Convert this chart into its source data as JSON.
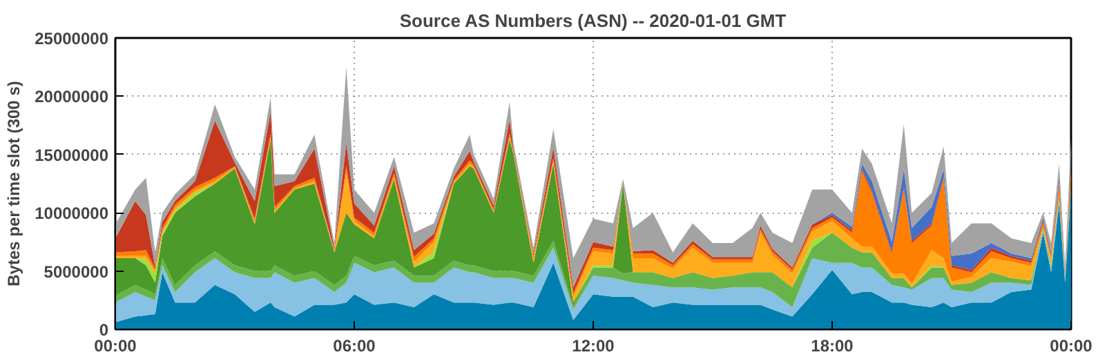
{
  "chart_data": {
    "type": "area",
    "stacked": true,
    "title": "Source AS Numbers (ASN) -- 2020-01-01 GMT",
    "ylabel": "Bytes per time slot (300 s)",
    "x": [
      0,
      0.5,
      0.77,
      1.0,
      1.18,
      1.5,
      2,
      2.5,
      3,
      3.5,
      3.9,
      4,
      4.5,
      5,
      5.5,
      5.8,
      6,
      6.5,
      7,
      7.5,
      8,
      8.5,
      8.9,
      9,
      9.5,
      9.9,
      10,
      10.5,
      11,
      11.5,
      12,
      12.5,
      12.75,
      13,
      13.5,
      14,
      14.5,
      15,
      15.5,
      16,
      16.2,
      16.5,
      17,
      17.5,
      18,
      18.5,
      18.75,
      19,
      19.5,
      19.8,
      20,
      20.5,
      20.8,
      21,
      21.5,
      22,
      22.5,
      23,
      23.3,
      23.5,
      23.7,
      23.85,
      24
    ],
    "xlim": [
      0,
      24
    ],
    "xticks": [
      {
        "value": 0,
        "label": "00:00"
      },
      {
        "value": 6,
        "label": "06:00"
      },
      {
        "value": 12,
        "label": "12:00"
      },
      {
        "value": 18,
        "label": "18:00"
      },
      {
        "value": 24,
        "label": "00:00"
      }
    ],
    "ylim": [
      0,
      25000000
    ],
    "yticks": [
      0,
      5000000,
      10000000,
      15000000,
      20000000,
      25000000
    ],
    "grid": true,
    "series": [
      {
        "color": "#0080b0",
        "values": [
          600000.0,
          1100000.0,
          1200000.0,
          1300000.0,
          4900000.0,
          2300000.0,
          2300000.0,
          3800000.0,
          3000000.0,
          1500000.0,
          2300000.0,
          1900000.0,
          1100000.0,
          2100000.0,
          2100000.0,
          2300000.0,
          3000000.0,
          2100000.0,
          2300000.0,
          1900000.0,
          3000000.0,
          2300000.0,
          2300000.0,
          2300000.0,
          2100000.0,
          2300000.0,
          2300000.0,
          1900000.0,
          5700000.0,
          800000.0,
          3000000.0,
          2800000.0,
          2800000.0,
          2800000.0,
          1900000.0,
          2300000.0,
          2100000.0,
          2100000.0,
          2100000.0,
          2100000.0,
          2100000.0,
          1700000.0,
          1100000.0,
          3000000.0,
          5100000.0,
          3000000.0,
          3200000.0,
          3200000.0,
          2300000.0,
          2300000.0,
          2100000.0,
          1900000.0,
          2300000.0,
          1900000.0,
          2300000.0,
          2300000.0,
          3200000.0,
          3400000.0,
          8300000.0,
          4900000.0,
          10800000.0,
          4000000.0,
          12000000.0
        ]
      },
      {
        "color": "#87c1e3",
        "values": [
          1700000.0,
          2100000.0,
          1600000.0,
          1200000.0,
          600000.0,
          900000.0,
          2600000.0,
          2300000.0,
          1900000.0,
          2900000.0,
          2100000.0,
          3000000.0,
          2900000.0,
          2300000.0,
          1100000.0,
          1700000.0,
          2700000.0,
          2800000.0,
          3000000.0,
          2100000.0,
          1000000.0,
          3000000.0,
          2600000.0,
          2600000.0,
          2300000.0,
          2100000.0,
          2100000.0,
          2100000.0,
          1300000.0,
          900000.0,
          1600000.0,
          1600000.0,
          1400000.0,
          1200000.0,
          1900000.0,
          1300000.0,
          1500000.0,
          1300000.0,
          1500000.0,
          1500000.0,
          1500000.0,
          1500000.0,
          800000.0,
          3100000.0,
          600000.0,
          2700000.0,
          2100000.0,
          2100000.0,
          1500000.0,
          1300000.0,
          1300000.0,
          2500000.0,
          2100000.0,
          1500000.0,
          900000.0,
          1700000.0,
          800000.0,
          400000.0,
          300000.0,
          300000.0,
          400000.0,
          300000.0,
          500000.0
        ]
      },
      {
        "color": "#69b44a",
        "values": [
          600000.0,
          600000.0,
          600000.0,
          500000.0,
          600000.0,
          600000.0,
          600000.0,
          600000.0,
          600000.0,
          600000.0,
          600000.0,
          600000.0,
          600000.0,
          600000.0,
          600000.0,
          600000.0,
          600000.0,
          600000.0,
          600000.0,
          600000.0,
          600000.0,
          600000.0,
          600000.0,
          600000.0,
          600000.0,
          600000.0,
          600000.0,
          600000.0,
          600000.0,
          300000.0,
          700000.0,
          900000.0,
          600000.0,
          900000.0,
          1100000.0,
          800000.0,
          1300000.0,
          1000000.0,
          1000000.0,
          1300000.0,
          1300000.0,
          1700000.0,
          1700000.0,
          900000.0,
          2600000.0,
          1300000.0,
          1300000.0,
          1300000.0,
          600000.0,
          800000.0,
          200000.0,
          900000.0,
          900000.0,
          400000.0,
          800000.0,
          900000.0,
          400000.0,
          400000.0,
          200000.0,
          300000.0,
          300000.0,
          200000.0,
          300000.0
        ]
      },
      {
        "color": "#4c9a2a",
        "values": [
          3200000.0,
          2300000.0,
          2100000.0,
          1000000.0,
          1900000.0,
          6200000.0,
          5900000.0,
          5800000.0,
          8300000.0,
          4000000.0,
          11300000.0,
          4500000.0,
          7400000.0,
          7500000.0,
          2800000.0,
          5400000.0,
          2700000.0,
          2300000.0,
          7000000.0,
          700000.0,
          1500000.0,
          6600000.0,
          8500000.0,
          8300000.0,
          5000000.0,
          11300000.0,
          10000000.0,
          1100000.0,
          6600000.0,
          300000.0,
          0,
          0,
          7700000.0,
          0,
          0,
          0,
          0,
          0,
          0,
          0,
          0,
          0,
          0,
          0,
          0,
          0,
          0,
          0,
          0,
          0,
          0,
          0,
          0,
          0,
          0,
          0,
          0,
          0,
          0,
          0,
          0,
          0,
          0
        ]
      },
      {
        "color": "#9fe03c",
        "values": [
          0,
          0,
          500000.0,
          800000.0,
          200000.0,
          200000.0,
          300000.0,
          0,
          0,
          0,
          0,
          0,
          0,
          0,
          0,
          0,
          0,
          0,
          0,
          0,
          600000.0,
          0,
          0,
          0,
          0,
          0,
          0,
          0,
          0,
          0,
          200000.0,
          200000.0,
          0,
          0,
          0,
          0,
          0,
          0,
          0,
          0,
          0,
          0,
          0,
          600000.0,
          0,
          0,
          0,
          0,
          0,
          0,
          0,
          200000.0,
          0,
          0,
          0,
          0,
          0,
          0,
          0,
          0,
          0,
          0,
          0
        ]
      },
      {
        "color": "#ffac1c",
        "values": [
          200000.0,
          200000.0,
          300000.0,
          200000.0,
          200000.0,
          200000.0,
          200000.0,
          200000.0,
          100000.0,
          200000.0,
          200000.0,
          200000.0,
          100000.0,
          200000.0,
          100000.0,
          3500000.0,
          300000.0,
          200000.0,
          200000.0,
          500000.0,
          800000.0,
          100000.0,
          200000.0,
          100000.0,
          100000.0,
          200000.0,
          100000.0,
          300000.0,
          200000.0,
          500000.0,
          1200000.0,
          1000000.0,
          0,
          1200000.0,
          1200000.0,
          800000.0,
          2100000.0,
          1300000.0,
          1100000.0,
          800000.0,
          3400000.0,
          1500000.0,
          1200000.0,
          800000.0,
          1000000.0,
          800000.0,
          500000.0,
          500000.0,
          400000.0,
          400000.0,
          300000.0,
          1300000.0,
          800000.0,
          300000.0,
          500000.0,
          1200000.0,
          1400000.0,
          1200000.0,
          0,
          500000.0,
          0,
          0,
          0
        ]
      },
      {
        "color": "#ff7f00",
        "values": [
          300000.0,
          400000.0,
          500000.0,
          200000.0,
          300000.0,
          300000.0,
          300000.0,
          300000.0,
          100000.0,
          300000.0,
          300000.0,
          300000.0,
          200000.0,
          300000.0,
          100000.0,
          500000.0,
          300000.0,
          300000.0,
          300000.0,
          400000.0,
          300000.0,
          200000.0,
          300000.0,
          200000.0,
          200000.0,
          300000.0,
          100000.0,
          300000.0,
          300000.0,
          300000.0,
          300000.0,
          300000.0,
          0,
          400000.0,
          400000.0,
          300000.0,
          300000.0,
          300000.0,
          300000.0,
          300000.0,
          300000.0,
          300000.0,
          300000.0,
          300000.0,
          300000.0,
          500000.0,
          6500000.0,
          4600000.0,
          1700000.0,
          7200000.0,
          3500000.0,
          2100000.0,
          6800000.0,
          1200000.0,
          400000.0,
          600000.0,
          300000.0,
          300000.0,
          400000.0,
          300000.0,
          800000.0,
          300000.0,
          1200000.0
        ]
      },
      {
        "color": "#c8381f",
        "values": [
          1200000.0,
          4300000.0,
          3000000.0,
          200000.0,
          500000.0,
          300000.0,
          500000.0,
          4900000.0,
          300000.0,
          1500000.0,
          1900000.0,
          1800000.0,
          400000.0,
          2500000.0,
          200000.0,
          2000000.0,
          1200000.0,
          600000.0,
          600000.0,
          600000.0,
          400000.0,
          300000.0,
          800000.0,
          300000.0,
          300000.0,
          1200000.0,
          200000.0,
          200000.0,
          900000.0,
          500000.0,
          500000.0,
          300000.0,
          0,
          200000.0,
          300000.0,
          200000.0,
          300000.0,
          200000.0,
          200000.0,
          200000.0,
          300000.0,
          200000.0,
          200000.0,
          300000.0,
          200000.0,
          200000.0,
          200000.0,
          200000.0,
          200000.0,
          200000.0,
          200000.0,
          200000.0,
          200000.0,
          200000.0,
          200000.0,
          300000.0,
          200000.0,
          200000.0,
          200000.0,
          200000.0,
          300000.0,
          100000.0,
          400000.0
        ]
      },
      {
        "color": "#4470c8",
        "values": [
          0,
          0,
          0,
          0,
          0,
          0,
          0,
          0,
          0,
          0,
          0,
          0,
          0,
          0,
          0,
          0,
          0,
          0,
          0,
          0,
          0,
          0,
          0,
          0,
          0,
          0,
          0,
          0,
          0,
          0,
          0,
          0,
          0,
          0,
          0,
          0,
          0,
          0,
          0,
          0,
          0,
          0,
          0,
          0,
          200000.0,
          300000.0,
          400000.0,
          800000.0,
          800000.0,
          1500000.0,
          1100000.0,
          1400000.0,
          600000.0,
          800000.0,
          1400000.0,
          400000.0,
          200000.0,
          200000.0,
          200000.0,
          200000.0,
          400000.0,
          100000.0,
          600000.0
        ]
      },
      {
        "color": "#a3a3a3",
        "values": [
          1200000.0,
          1000000.0,
          3200000.0,
          1200000.0,
          800000.0,
          600000.0,
          600000.0,
          1400000.0,
          500000.0,
          1000000.0,
          1200000.0,
          1000000.0,
          600000.0,
          1200000.0,
          400000.0,
          6500000.0,
          1200000.0,
          1100000.0,
          800000.0,
          1500000.0,
          900000.0,
          700000.0,
          1400000.0,
          600000.0,
          600000.0,
          1500000.0,
          500000.0,
          500000.0,
          1600000.0,
          2500000.0,
          2000000.0,
          2000000.0,
          400000.0,
          2000000.0,
          3200000.0,
          900000.0,
          1500000.0,
          1200000.0,
          1200000.0,
          2500000.0,
          1100000.0,
          1400000.0,
          2100000.0,
          3000000.0,
          2000000.0,
          1200000.0,
          1300000.0,
          1500000.0,
          1600000.0,
          3900000.0,
          1300000.0,
          1200000.0,
          2000000.0,
          1100000.0,
          2600000.0,
          1700000.0,
          1300000.0,
          1300000.0,
          400000.0,
          700000.0,
          1200000.0,
          500000.0,
          1300000.0
        ]
      }
    ]
  }
}
